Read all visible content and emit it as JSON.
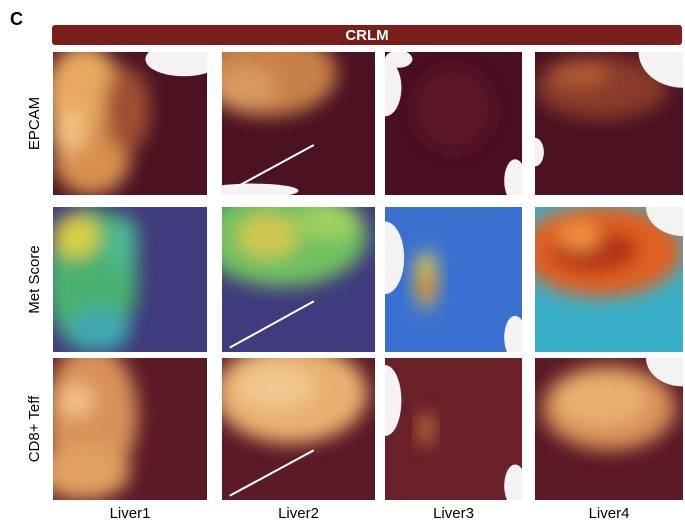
{
  "panel_label": "C",
  "banner": "CRLM",
  "rows": [
    "EPCAM",
    "Met Score",
    "CD8+ Teff"
  ],
  "columns": [
    "Liver1",
    "Liver2",
    "Liver3",
    "Liver4"
  ]
}
